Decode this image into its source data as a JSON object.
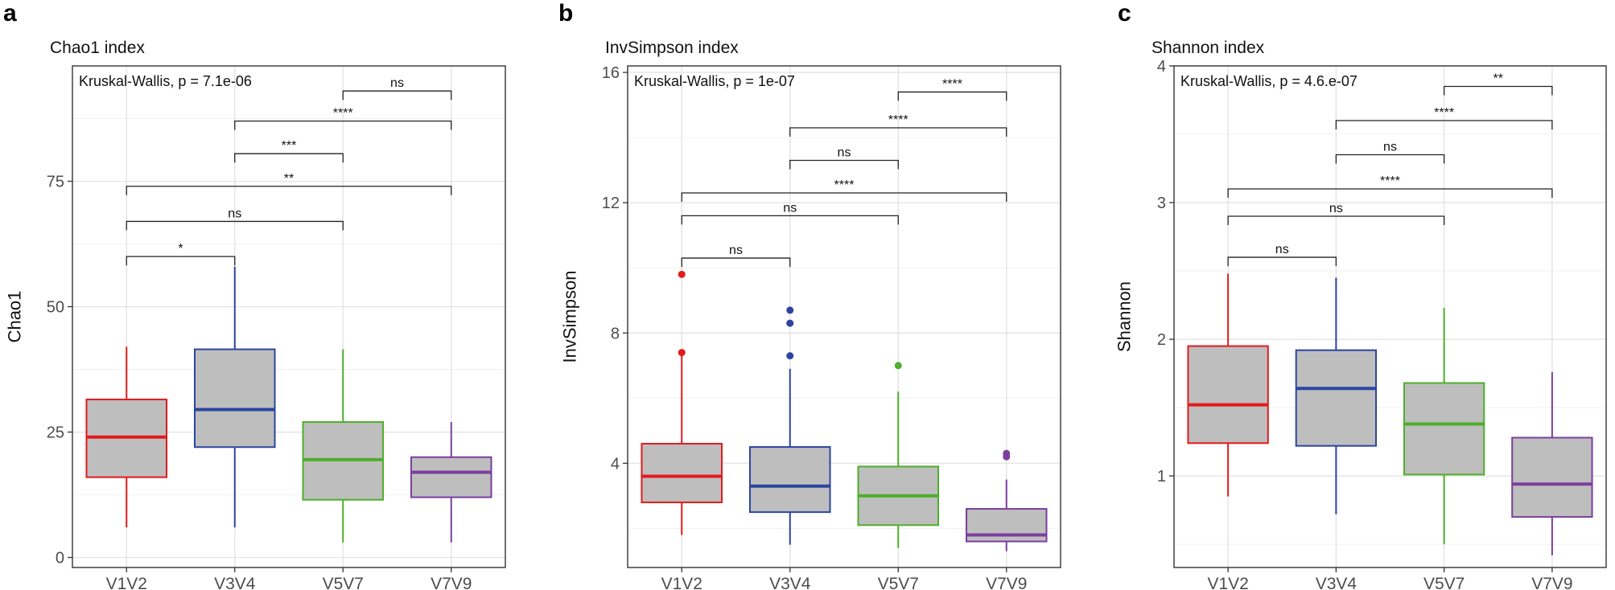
{
  "chart_data": [
    {
      "type": "box",
      "panel_label": "a",
      "title": "Chao1 index",
      "ylabel": "Chao1",
      "ylim": [
        -2,
        98
      ],
      "yticks": [
        0,
        25,
        50,
        75
      ],
      "categories": [
        "V1V2",
        "V3V4",
        "V5V7",
        "V7V9"
      ],
      "colors": [
        "#e41a1c",
        "#2b45a0",
        "#4daf2a",
        "#7b3f9e"
      ],
      "boxes": [
        {
          "min": 6,
          "q1": 16,
          "median": 24,
          "q3": 31.5,
          "max": 42,
          "outliers": []
        },
        {
          "min": 6,
          "q1": 22,
          "median": 29.5,
          "q3": 41.5,
          "max": 58,
          "outliers": []
        },
        {
          "min": 3,
          "q1": 11.5,
          "median": 19.5,
          "q3": 27,
          "max": 41.5,
          "outliers": []
        },
        {
          "min": 3,
          "q1": 12,
          "median": 17,
          "q3": 20,
          "max": 27,
          "outliers": []
        }
      ],
      "test_label": "Kruskal-Wallis, p = 7.1e-06",
      "comparisons": [
        {
          "from": 0,
          "to": 1,
          "y": 60,
          "label": "*"
        },
        {
          "from": 0,
          "to": 2,
          "y": 67,
          "label": "ns"
        },
        {
          "from": 0,
          "to": 3,
          "y": 74,
          "label": "**"
        },
        {
          "from": 1,
          "to": 2,
          "y": 80.5,
          "label": "***"
        },
        {
          "from": 1,
          "to": 3,
          "y": 87,
          "label": "****"
        },
        {
          "from": 2,
          "to": 3,
          "y": 93,
          "label": "ns"
        }
      ]
    },
    {
      "type": "box",
      "panel_label": "b",
      "title": "InvSimpson index",
      "ylabel": "InvSimpson",
      "ylim": [
        0.8,
        16.2
      ],
      "yticks": [
        4,
        8,
        12,
        16
      ],
      "categories": [
        "V1V2",
        "V3V4",
        "V5V7",
        "V7V9"
      ],
      "colors": [
        "#e41a1c",
        "#2b45a0",
        "#4daf2a",
        "#7b3f9e"
      ],
      "boxes": [
        {
          "min": 1.8,
          "q1": 2.8,
          "median": 3.6,
          "q3": 4.6,
          "max": 7.3,
          "outliers": [
            7.4,
            9.8
          ]
        },
        {
          "min": 1.5,
          "q1": 2.5,
          "median": 3.3,
          "q3": 4.5,
          "max": 6.9,
          "outliers": [
            7.3,
            8.3,
            8.7
          ]
        },
        {
          "min": 1.4,
          "q1": 2.1,
          "median": 3.0,
          "q3": 3.9,
          "max": 6.2,
          "outliers": [
            7.0
          ]
        },
        {
          "min": 1.3,
          "q1": 1.6,
          "median": 1.8,
          "q3": 2.6,
          "max": 3.5,
          "outliers": [
            4.2,
            4.3
          ]
        }
      ],
      "test_label": "Kruskal-Wallis, p = 1e-07",
      "comparisons": [
        {
          "from": 0,
          "to": 1,
          "y": 10.3,
          "label": "ns"
        },
        {
          "from": 0,
          "to": 2,
          "y": 11.6,
          "label": "ns"
        },
        {
          "from": 0,
          "to": 3,
          "y": 12.3,
          "label": "****"
        },
        {
          "from": 1,
          "to": 2,
          "y": 13.3,
          "label": "ns"
        },
        {
          "from": 1,
          "to": 3,
          "y": 14.3,
          "label": "****"
        },
        {
          "from": 2,
          "to": 3,
          "y": 15.4,
          "label": "****"
        }
      ]
    },
    {
      "type": "box",
      "panel_label": "c",
      "title": "Shannon index",
      "ylabel": "Shannon",
      "ylim": [
        0.33,
        4.0
      ],
      "yticks": [
        1,
        2,
        3,
        4
      ],
      "categories": [
        "V1V2",
        "V3V4",
        "V5V7",
        "V7V9"
      ],
      "colors": [
        "#e41a1c",
        "#2b45a0",
        "#4daf2a",
        "#7b3f9e"
      ],
      "boxes": [
        {
          "min": 0.85,
          "q1": 1.24,
          "median": 1.52,
          "q3": 1.95,
          "max": 2.48,
          "outliers": []
        },
        {
          "min": 0.72,
          "q1": 1.22,
          "median": 1.64,
          "q3": 1.92,
          "max": 2.45,
          "outliers": []
        },
        {
          "min": 0.5,
          "q1": 1.01,
          "median": 1.38,
          "q3": 1.68,
          "max": 2.23,
          "outliers": []
        },
        {
          "min": 0.42,
          "q1": 0.7,
          "median": 0.94,
          "q3": 1.28,
          "max": 1.76,
          "outliers": []
        }
      ],
      "test_label": "Kruskal-Wallis, p = 4.6.e-07",
      "comparisons": [
        {
          "from": 0,
          "to": 1,
          "y": 2.6,
          "label": "ns"
        },
        {
          "from": 0,
          "to": 2,
          "y": 2.9,
          "label": "ns"
        },
        {
          "from": 0,
          "to": 3,
          "y": 3.1,
          "label": "****"
        },
        {
          "from": 1,
          "to": 2,
          "y": 3.35,
          "label": "ns"
        },
        {
          "from": 1,
          "to": 3,
          "y": 3.6,
          "label": "****"
        },
        {
          "from": 2,
          "to": 3,
          "y": 3.85,
          "label": "**"
        }
      ]
    }
  ]
}
